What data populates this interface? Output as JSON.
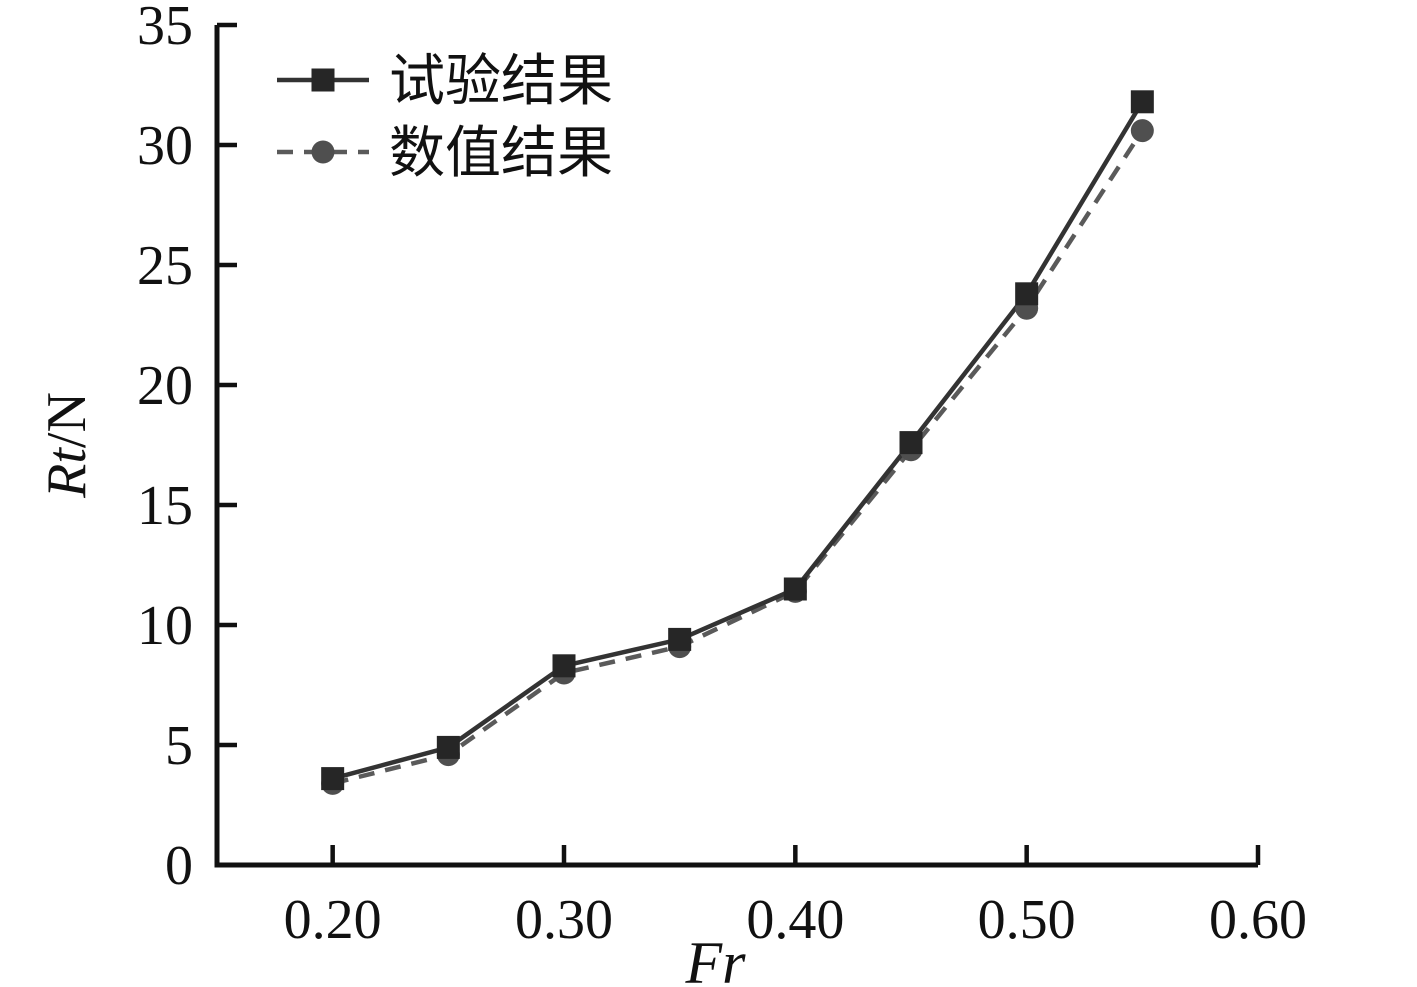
{
  "chart_data": {
    "type": "line",
    "x": [
      0.2,
      0.25,
      0.3,
      0.35,
      0.4,
      0.45,
      0.5,
      0.55
    ],
    "series": [
      {
        "name": "试验结果",
        "values": [
          3.6,
          4.9,
          8.3,
          9.4,
          11.5,
          17.6,
          23.8,
          31.8
        ],
        "marker": "square",
        "line_style": "solid",
        "line_color": "#333333",
        "marker_color": "#262626"
      },
      {
        "name": "数值结果",
        "values": [
          3.4,
          4.6,
          8.0,
          9.1,
          11.4,
          17.3,
          23.2,
          30.6
        ],
        "marker": "circle",
        "line_style": "dashed",
        "line_color": "#5a5a5a",
        "marker_color": "#4f4f4f"
      }
    ],
    "xlabel_parts": [
      {
        "text": "Fr",
        "italic": true
      }
    ],
    "ylabel_parts": [
      {
        "text": "Rt",
        "italic": true
      },
      {
        "text": "/N",
        "italic": false
      }
    ],
    "xlim": [
      0.15,
      0.6
    ],
    "ylim": [
      0,
      35
    ],
    "x_ticks": [
      "0.20",
      "0.30",
      "0.40",
      "0.50",
      "0.60"
    ],
    "y_ticks": [
      "0",
      "5",
      "10",
      "15",
      "20",
      "25",
      "30",
      "35"
    ],
    "legend_position": "top-left",
    "grid": false,
    "axis_color": "#111111",
    "background_color": "#ffffff"
  }
}
